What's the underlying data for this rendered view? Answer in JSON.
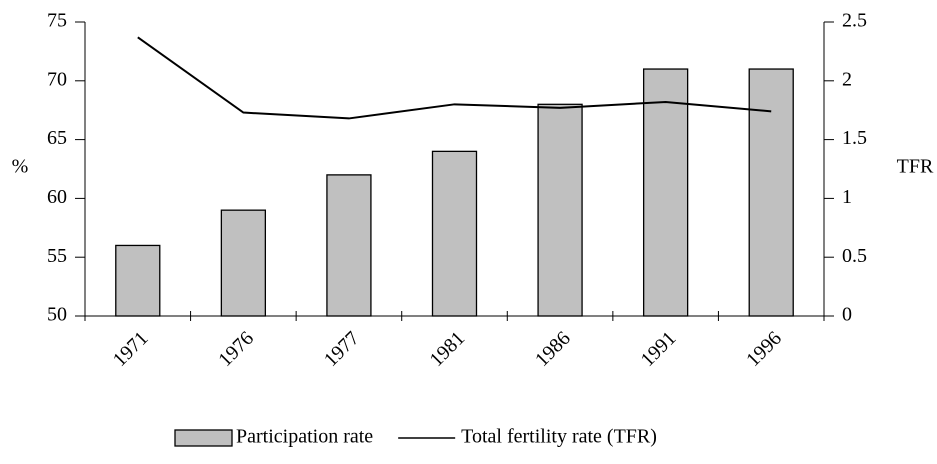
{
  "chart_data": {
    "type": "bar-line",
    "y_label": "%",
    "y2_label": "TFR",
    "categories": [
      "1971",
      "1976",
      "1977",
      "1981",
      "1986",
      "1991",
      "1996"
    ],
    "series": [
      {
        "name": "Participation rate",
        "type": "bar",
        "color": "#c0c0c0",
        "values": [
          56,
          59,
          62,
          64,
          68,
          71,
          71
        ]
      },
      {
        "name": "Total fertility rate (TFR)",
        "type": "line",
        "axis": "y2",
        "color": "#000000",
        "values": [
          2.37,
          1.73,
          1.68,
          1.8,
          1.77,
          1.82,
          1.74
        ]
      }
    ],
    "ylim": [
      50,
      75
    ],
    "yticks": [
      50,
      55,
      60,
      65,
      70,
      75
    ],
    "y2lim": [
      0,
      2.5
    ],
    "y2ticks": [
      0,
      0.5,
      1,
      1.5,
      2,
      2.5
    ],
    "grid": false,
    "legend": "bottom"
  }
}
